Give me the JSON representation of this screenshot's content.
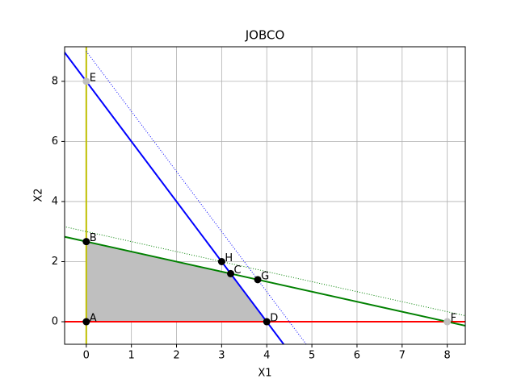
{
  "chart_data": {
    "type": "line",
    "title": "JOBCO",
    "xlabel": "X1",
    "ylabel": "X2",
    "xlim": [
      -0.48,
      8.4
    ],
    "ylim": [
      -0.75,
      9.15
    ],
    "xticks": [
      0,
      1,
      2,
      3,
      4,
      5,
      6,
      7,
      8
    ],
    "yticks": [
      0,
      2,
      4,
      6,
      8
    ],
    "grid": true,
    "region": {
      "x": [
        0,
        0,
        3.2,
        4
      ],
      "values": [
        0,
        2.667,
        1.6,
        0
      ],
      "color": "#bfbfbf"
    },
    "series": [
      {
        "color": "#bfbf00",
        "style": "solid",
        "x": [
          0,
          0
        ],
        "values": [
          -0.75,
          9.15
        ]
      },
      {
        "color": "#ff0000",
        "style": "solid",
        "x": [
          -0.5,
          8.5
        ],
        "values": [
          0,
          0
        ]
      },
      {
        "color": "#0000ff",
        "style": "solid",
        "x": [
          -0.5,
          4.4
        ],
        "values": [
          9,
          -0.8
        ]
      },
      {
        "color": "#008000",
        "style": "solid",
        "x": [
          -0.5,
          8.5
        ],
        "values": [
          2.833,
          -0.167
        ]
      },
      {
        "color": "#0000ff",
        "style": "dotted",
        "x": [
          0,
          4.875
        ],
        "values": [
          9,
          -0.75
        ]
      },
      {
        "color": "#008000",
        "style": "dotted",
        "x": [
          -0.5,
          8.5
        ],
        "values": [
          3.167,
          0.167
        ]
      }
    ],
    "points": [
      {
        "label": "A",
        "x": 0,
        "y": 0,
        "color": "#000000"
      },
      {
        "label": "B",
        "x": 0,
        "y": 2.667,
        "color": "#000000"
      },
      {
        "label": "C",
        "x": 3.2,
        "y": 1.6,
        "color": "#000000"
      },
      {
        "label": "D",
        "x": 4,
        "y": 0,
        "color": "#000000"
      },
      {
        "label": "E",
        "x": 0,
        "y": 8,
        "color": "#bfbfbf"
      },
      {
        "label": "F",
        "x": 8,
        "y": 0,
        "color": "#bfbfbf"
      },
      {
        "label": "G",
        "x": 3.8,
        "y": 1.4,
        "color": "#000000"
      },
      {
        "label": "H",
        "x": 3,
        "y": 2,
        "color": "#000000"
      }
    ]
  }
}
